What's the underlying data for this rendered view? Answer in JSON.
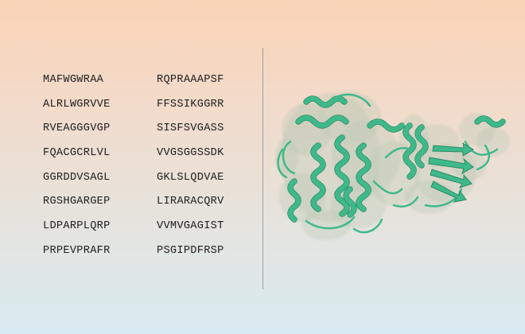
{
  "sequence": {
    "left_column": [
      "MAFWGWRAA",
      "ALRLWGRVVE",
      "RVEAGGGVGP",
      "FQACGCRLVL",
      "GGRDDVSAGL",
      "RGSHGARGEP",
      "LDPARPLQRP",
      "PRPEVPRAFR"
    ],
    "right_column": [
      "RQPRAAAPSF",
      "FFSSIKGGRR",
      "SISFSVGASS",
      "VVGSGGSSDK",
      "GKLSLQDVAE",
      "LIRARACQRV",
      "VVMVGAGIST",
      "PSGIPDFRSP"
    ]
  },
  "structure": {
    "ribbon_color": "#3fb98a",
    "ribbon_dark_color": "#2a8a66",
    "surface_color": "#b9c8b4"
  }
}
